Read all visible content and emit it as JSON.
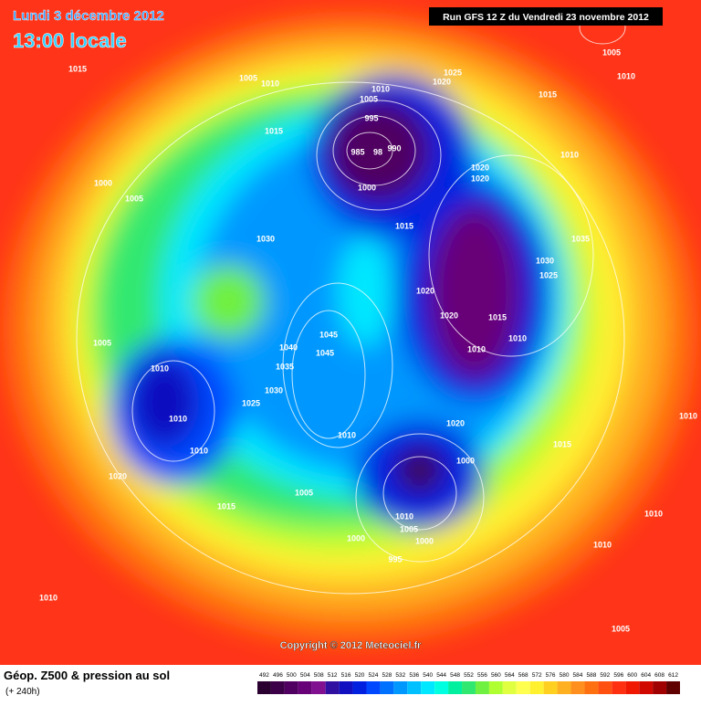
{
  "header": {
    "date": "Lundi 3 décembre 2012",
    "time": "13:00 locale",
    "run": "Run GFS 12 Z du Vendredi 23 novembre 2012"
  },
  "footer": {
    "title": "Géop. Z500 & pression au sol",
    "lead": "(+ 240h)",
    "copyright": "Copyright © 2012 Meteociel.fr"
  },
  "scale": {
    "labels": [
      492,
      496,
      500,
      504,
      508,
      512,
      516,
      520,
      524,
      528,
      532,
      536,
      540,
      544,
      548,
      552,
      556,
      560,
      564,
      568,
      572,
      576,
      580,
      584,
      588,
      592,
      596,
      600,
      604,
      608,
      612
    ],
    "colors": [
      "#2a0030",
      "#3c0048",
      "#500060",
      "#680078",
      "#801090",
      "#3010a0",
      "#1010c0",
      "#0020e0",
      "#0048ff",
      "#0070ff",
      "#0098ff",
      "#00c0ff",
      "#00e8ff",
      "#00ffe0",
      "#00f0a0",
      "#30e870",
      "#70f040",
      "#b0ff30",
      "#e0ff40",
      "#ffff50",
      "#fff030",
      "#ffd020",
      "#ffb020",
      "#ff9020",
      "#ff7010",
      "#ff5010",
      "#ff3010",
      "#f01800",
      "#d00800",
      "#a00000",
      "#600000"
    ]
  },
  "isobar_labels": [
    1015,
    1005,
    1010,
    1010,
    1025,
    1020,
    1015,
    1005,
    995,
    1015,
    985,
    98,
    990,
    1000,
    1020,
    1020,
    1010,
    1000,
    1005,
    1015,
    1030,
    1035,
    1030,
    1025,
    1020,
    1020,
    1015,
    1010,
    1010,
    1005,
    1045,
    1040,
    1045,
    1035,
    1010,
    1030,
    1025,
    1010,
    1010,
    1020,
    1010,
    1000,
    1015,
    1020,
    1005,
    1010,
    1015,
    1010,
    1010,
    1005,
    1000,
    1000,
    1010,
    995,
    1010,
    1005,
    1005,
    1010
  ]
}
